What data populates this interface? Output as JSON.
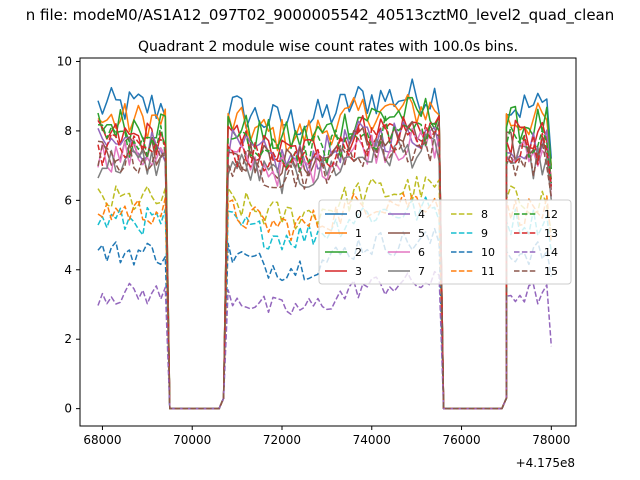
{
  "figure": {
    "suptitle": "n file: modeM0/AS1A12_097T02_9000005542_40513cztM0_level2_quad_clean",
    "x_offset_label": "+4.175e8"
  },
  "chart_data": {
    "type": "line",
    "title": "Quadrant 2 module wise count rates with 100.0s bins.",
    "xlabel": "",
    "ylabel": "",
    "x_offset": 417500000,
    "xlim": [
      67500,
      78550
    ],
    "ylim": [
      -0.5,
      10.1
    ],
    "x_ticks": [
      68000,
      70000,
      72000,
      74000,
      76000,
      78000
    ],
    "y_ticks": [
      0,
      2,
      4,
      6,
      8,
      10
    ],
    "grid": false,
    "legend_location": "center-right",
    "legend_columns": 4,
    "segments": [
      {
        "x_start": 67900,
        "x_end": 69400,
        "step": 100
      },
      {
        "x_start": 70800,
        "x_end": 75500,
        "step": 100
      },
      {
        "x_start": 77000,
        "x_end": 78000,
        "step": 100
      }
    ],
    "gaps": [
      [
        69500,
        70600
      ],
      [
        75600,
        76900
      ]
    ],
    "series": [
      {
        "name": "0",
        "style": "solid",
        "color": "#1f77b4",
        "level": 8.7,
        "post_end": 7.2
      },
      {
        "name": "1",
        "style": "solid",
        "color": "#ff7f0e",
        "level": 8.3,
        "post_end": 7.0
      },
      {
        "name": "2",
        "style": "solid",
        "color": "#2ca02c",
        "level": 8.2,
        "post_end": 6.9
      },
      {
        "name": "3",
        "style": "solid",
        "color": "#d62728",
        "level": 7.8,
        "post_end": 6.6
      },
      {
        "name": "4",
        "style": "solid",
        "color": "#9467bd",
        "level": 7.6,
        "post_end": 6.4
      },
      {
        "name": "5",
        "style": "solid",
        "color": "#8c564b",
        "level": 7.5,
        "post_end": 6.3
      },
      {
        "name": "6",
        "style": "solid",
        "color": "#e377c2",
        "level": 7.3,
        "post_end": 6.1
      },
      {
        "name": "7",
        "style": "solid",
        "color": "#7f7f7f",
        "level": 7.1,
        "post_end": 6.0
      },
      {
        "name": "8",
        "style": "dashed",
        "color": "#bcbd22",
        "level": 6.0,
        "post_end": 5.1
      },
      {
        "name": "9",
        "style": "dashed",
        "color": "#17becf",
        "level": 5.4,
        "post_end": 4.5
      },
      {
        "name": "10",
        "style": "dashed",
        "color": "#1f77b4",
        "level": 4.5,
        "post_end": 3.8
      },
      {
        "name": "11",
        "style": "dashed",
        "color": "#ff7f0e",
        "level": 5.7,
        "post_end": 4.8
      },
      {
        "name": "12",
        "style": "dashed",
        "color": "#2ca02c",
        "level": 7.7,
        "post_end": 6.5
      },
      {
        "name": "13",
        "style": "dashed",
        "color": "#d62728",
        "level": 7.5,
        "post_end": 6.4
      },
      {
        "name": "14",
        "style": "dashed",
        "color": "#9467bd",
        "level": 3.3,
        "post_end": 1.8
      },
      {
        "name": "15",
        "style": "dashed",
        "color": "#8c564b",
        "level": 7.2,
        "post_end": 6.1
      }
    ]
  }
}
